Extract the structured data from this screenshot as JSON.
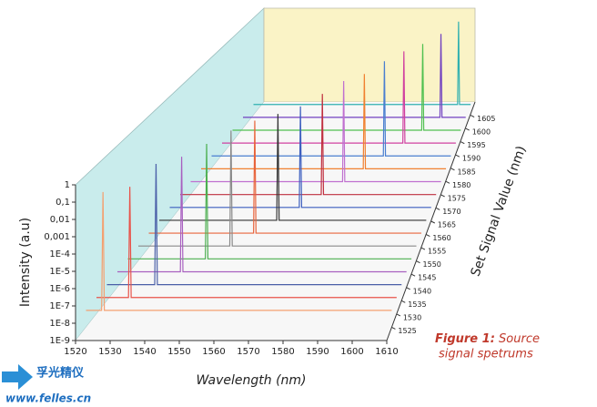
{
  "chart_data": {
    "type": "waterfall",
    "xlabel": "Wavelength (nm)",
    "ylabel": "Intensity (a.u)",
    "zlabel": "Set Signal Value (nm)",
    "xlim": [
      1520,
      1610
    ],
    "xticks": [
      1520,
      1530,
      1540,
      1550,
      1560,
      1570,
      1580,
      1590,
      1600,
      1610
    ],
    "ylim": [
      1e-09,
      1
    ],
    "yscale": "log",
    "yticks": [
      {
        "value": 1e-09,
        "label": "1E-9"
      },
      {
        "value": 1e-08,
        "label": "1E-8"
      },
      {
        "value": 1e-07,
        "label": "1E-7"
      },
      {
        "value": 1e-06,
        "label": "1E-6"
      },
      {
        "value": 1e-05,
        "label": "1E-5"
      },
      {
        "value": 0.0001,
        "label": "1E-4"
      },
      {
        "value": 0.001,
        "label": "0,001"
      },
      {
        "value": 0.01,
        "label": "0,01"
      },
      {
        "value": 0.1,
        "label": "0,1"
      },
      1
    ],
    "zlim": [
      1520,
      1610
    ],
    "zticks": [
      1525,
      1530,
      1535,
      1540,
      1545,
      1550,
      1555,
      1560,
      1565,
      1570,
      1575,
      1580,
      1585,
      1590,
      1595,
      1600,
      1605
    ],
    "series": [
      {
        "color": "#f4a070",
        "x": [
          1520,
          1524.6,
          1525,
          1525.4,
          1610
        ],
        "values": [
          1e-08,
          1e-08,
          0.1,
          1e-08,
          1e-08
        ]
      },
      {
        "color": "#e8534a",
        "x": [
          1520,
          1529.6,
          1530,
          1530.4,
          1610
        ],
        "values": [
          1e-08,
          1e-08,
          0.05,
          1e-08,
          1e-08
        ]
      },
      {
        "color": "#4a5fa8",
        "x": [
          1520,
          1534.6,
          1535,
          1535.4,
          1610
        ],
        "values": [
          1e-08,
          1e-08,
          0.3,
          1e-08,
          1e-08
        ]
      },
      {
        "color": "#a860c0",
        "x": [
          1520,
          1539.6,
          1540,
          1540.4,
          1610
        ],
        "values": [
          1e-08,
          1e-08,
          0.2,
          1e-08,
          1e-08
        ]
      },
      {
        "color": "#4caf50",
        "x": [
          1520,
          1544.6,
          1545,
          1545.4,
          1610
        ],
        "values": [
          1e-08,
          1e-08,
          0.3,
          1e-08,
          1e-08
        ]
      },
      {
        "color": "#8a8a8a",
        "x": [
          1520,
          1549.6,
          1550,
          1550.4,
          1610
        ],
        "values": [
          1e-08,
          1e-08,
          0.5,
          1e-08,
          1e-08
        ]
      },
      {
        "color": "#e8643c",
        "x": [
          1520,
          1554.6,
          1555,
          1555.4,
          1610
        ],
        "values": [
          1e-08,
          1e-08,
          0.5,
          1e-08,
          1e-08
        ]
      },
      {
        "color": "#333333",
        "x": [
          1520,
          1559.6,
          1560,
          1560.4,
          1610
        ],
        "values": [
          1e-08,
          1e-08,
          0.3,
          1e-08,
          1e-08
        ]
      },
      {
        "color": "#3d5fbf",
        "x": [
          1520,
          1564.6,
          1565,
          1565.4,
          1610
        ],
        "values": [
          1e-08,
          1e-08,
          0.2,
          1e-08,
          1e-08
        ]
      },
      {
        "color": "#c03040",
        "x": [
          1520,
          1569.6,
          1570,
          1570.4,
          1610
        ],
        "values": [
          1e-08,
          1e-08,
          0.3,
          1e-08,
          1e-08
        ]
      },
      {
        "color": "#c070d0",
        "x": [
          1520,
          1574.6,
          1575,
          1575.4,
          1610
        ],
        "values": [
          1e-08,
          1e-08,
          0.5,
          1e-08,
          1e-08
        ]
      },
      {
        "color": "#f08030",
        "x": [
          1520,
          1579.6,
          1580,
          1580.4,
          1610
        ],
        "values": [
          1e-08,
          1e-08,
          0.3,
          1e-08,
          1e-08
        ]
      },
      {
        "color": "#4a7fd0",
        "x": [
          1520,
          1584.6,
          1585,
          1585.4,
          1610
        ],
        "values": [
          1e-08,
          1e-08,
          0.5,
          1e-08,
          1e-08
        ]
      },
      {
        "color": "#d040a0",
        "x": [
          1520,
          1589.6,
          1590,
          1590.4,
          1610
        ],
        "values": [
          1e-08,
          1e-08,
          0.5,
          1e-08,
          1e-08
        ]
      },
      {
        "color": "#50c050",
        "x": [
          1520,
          1594.6,
          1595,
          1595.4,
          1610
        ],
        "values": [
          1e-08,
          1e-08,
          0.3,
          1e-08,
          1e-08
        ]
      },
      {
        "color": "#7040c0",
        "x": [
          1520,
          1599.6,
          1600,
          1600.4,
          1610
        ],
        "values": [
          1e-08,
          1e-08,
          0.3,
          1e-08,
          1e-08
        ]
      },
      {
        "color": "#30b0b0",
        "x": [
          1520,
          1604.6,
          1605,
          1605.4,
          1610
        ],
        "values": [
          1e-08,
          1e-08,
          0.5,
          1e-08,
          1e-08
        ]
      }
    ]
  },
  "caption": {
    "label": "Figure 1:",
    "line1": "Source",
    "line2": "signal spetrums"
  },
  "watermark": {
    "brand": "孚光精仪",
    "url": "www.felles.cn"
  }
}
